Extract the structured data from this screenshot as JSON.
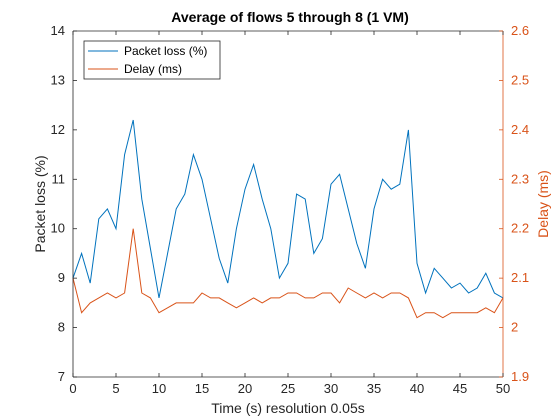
{
  "chart_data": {
    "type": "line",
    "title": "Average of flows 5 through 8 (1 VM)",
    "xlabel": "Time (s) resolution 0.05s",
    "ylabel_left": "Packet loss (%)",
    "ylabel_right": "Delay (ms)",
    "xlim": [
      0,
      50
    ],
    "ylim_left": [
      7,
      14
    ],
    "ylim_right": [
      1.9,
      2.6
    ],
    "x_ticks": [
      "0",
      "5",
      "10",
      "15",
      "20",
      "25",
      "30",
      "35",
      "40",
      "45",
      "50"
    ],
    "y_ticks_left": [
      "7",
      "8",
      "9",
      "10",
      "11",
      "12",
      "13",
      "14"
    ],
    "y_ticks_right": [
      "1.9",
      "2",
      "2.1",
      "2.2",
      "2.3",
      "2.4",
      "2.5",
      "2.6"
    ],
    "grid": false,
    "legend_position": "top-left",
    "series": [
      {
        "name": "Packet loss (%)",
        "axis": "left",
        "color": "#0072BD",
        "x": [
          0,
          1,
          2,
          3,
          4,
          5,
          6,
          7,
          8,
          9,
          10,
          11,
          12,
          13,
          14,
          15,
          16,
          17,
          18,
          19,
          20,
          21,
          22,
          23,
          24,
          25,
          26,
          27,
          28,
          29,
          30,
          31,
          32,
          33,
          34,
          35,
          36,
          37,
          38,
          39,
          40,
          41,
          42,
          43,
          44,
          45,
          46,
          47,
          48,
          49,
          50
        ],
        "values": [
          9.0,
          9.5,
          8.9,
          10.2,
          10.4,
          10.0,
          11.5,
          12.2,
          10.6,
          9.6,
          8.6,
          9.5,
          10.4,
          10.7,
          11.5,
          11.0,
          10.2,
          9.4,
          8.9,
          10.0,
          10.8,
          11.3,
          10.6,
          10.0,
          9.0,
          9.3,
          10.7,
          10.6,
          9.5,
          9.8,
          10.9,
          11.1,
          10.4,
          9.7,
          9.2,
          10.4,
          11.0,
          10.8,
          10.9,
          12.0,
          9.3,
          8.7,
          9.2,
          9.0,
          8.8,
          8.9,
          8.7,
          8.8,
          9.1,
          8.7,
          8.6
        ]
      },
      {
        "name": "Delay (ms)",
        "axis": "right",
        "color": "#D95319",
        "x": [
          0,
          1,
          2,
          3,
          4,
          5,
          6,
          7,
          8,
          9,
          10,
          11,
          12,
          13,
          14,
          15,
          16,
          17,
          18,
          19,
          20,
          21,
          22,
          23,
          24,
          25,
          26,
          27,
          28,
          29,
          30,
          31,
          32,
          33,
          34,
          35,
          36,
          37,
          38,
          39,
          40,
          41,
          42,
          43,
          44,
          45,
          46,
          47,
          48,
          49,
          50
        ],
        "values": [
          2.1,
          2.03,
          2.05,
          2.06,
          2.07,
          2.06,
          2.07,
          2.2,
          2.07,
          2.06,
          2.03,
          2.04,
          2.05,
          2.05,
          2.05,
          2.07,
          2.06,
          2.06,
          2.05,
          2.04,
          2.05,
          2.06,
          2.05,
          2.06,
          2.06,
          2.07,
          2.07,
          2.06,
          2.06,
          2.07,
          2.07,
          2.05,
          2.08,
          2.07,
          2.06,
          2.07,
          2.06,
          2.07,
          2.07,
          2.06,
          2.02,
          2.03,
          2.03,
          2.02,
          2.03,
          2.03,
          2.03,
          2.03,
          2.04,
          2.03,
          2.06
        ]
      }
    ]
  }
}
